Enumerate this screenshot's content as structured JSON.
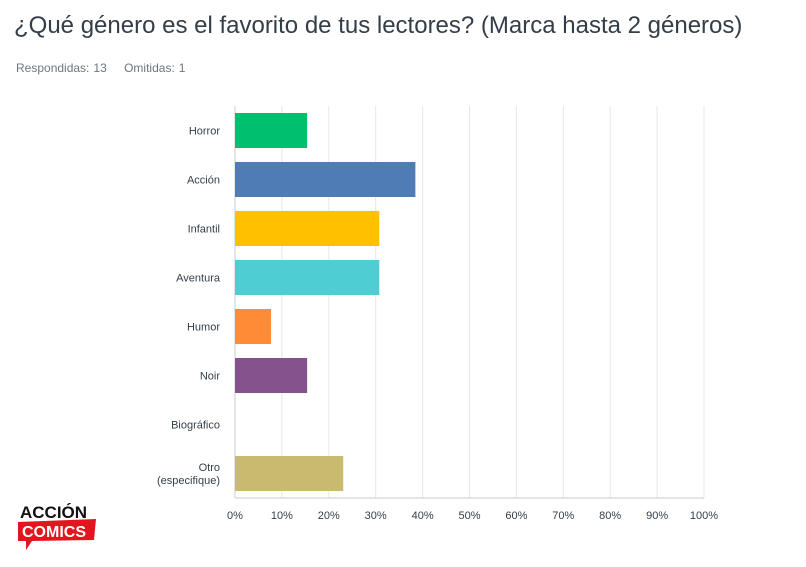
{
  "survey": {
    "question": "¿Qué género es el favorito de tus lectores? (Marca hasta 2 géneros)",
    "answered_label": "Respondidas:",
    "answered_count": "13",
    "skipped_label": "Omitidas:",
    "skipped_count": "1"
  },
  "logo": {
    "line1": "ACCIÓN",
    "line2": "COMICS"
  },
  "chart_data": {
    "type": "bar",
    "orientation": "horizontal",
    "categories": [
      "Horror",
      "Acción",
      "Infantil",
      "Aventura",
      "Humor",
      "Noir",
      "Biográfico",
      "Otro (especifique)"
    ],
    "category_lines": [
      [
        "Horror"
      ],
      [
        "Acción"
      ],
      [
        "Infantil"
      ],
      [
        "Aventura"
      ],
      [
        "Humor"
      ],
      [
        "Noir"
      ],
      [
        "Biográfico"
      ],
      [
        "Otro",
        "(especifique)"
      ]
    ],
    "values": [
      15.38,
      38.46,
      30.77,
      30.77,
      7.69,
      15.38,
      0,
      23.08
    ],
    "colors": [
      "#00bf6f",
      "#507cb6",
      "#ffc000",
      "#4ecdd2",
      "#ff8b37",
      "#86528e",
      "#999999",
      "#c9bb6d"
    ],
    "xlim": [
      0,
      100
    ],
    "xticks": [
      "0%",
      "10%",
      "20%",
      "30%",
      "40%",
      "50%",
      "60%",
      "70%",
      "80%",
      "90%",
      "100%"
    ],
    "grid": true
  }
}
